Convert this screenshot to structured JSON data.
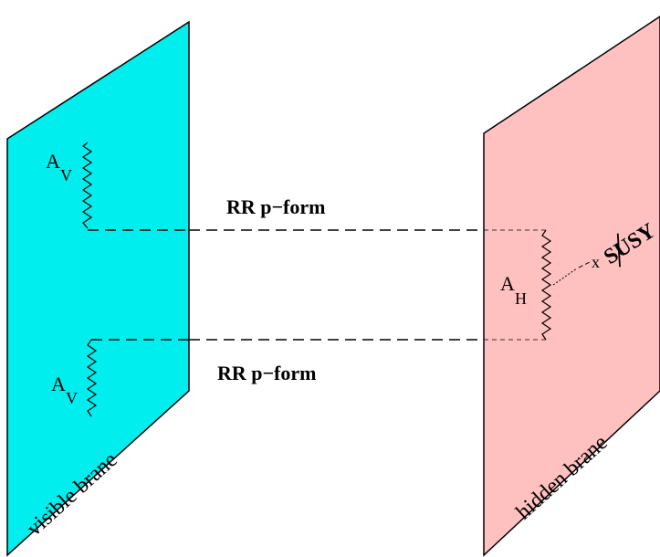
{
  "diagram": {
    "visible_brane": {
      "label": "visible brane",
      "color": "#00eeee",
      "fields": [
        {
          "name": "A",
          "subscript": "V"
        },
        {
          "name": "A",
          "subscript": "V"
        }
      ]
    },
    "hidden_brane": {
      "label": "hidden brane",
      "color": "#ffc0c0",
      "field": {
        "name": "A",
        "subscript": "H"
      },
      "insertion_mark": "x",
      "susy_label": "SUSY"
    },
    "connections": [
      {
        "label": "RR p−form"
      },
      {
        "label": "RR p−form"
      }
    ]
  }
}
